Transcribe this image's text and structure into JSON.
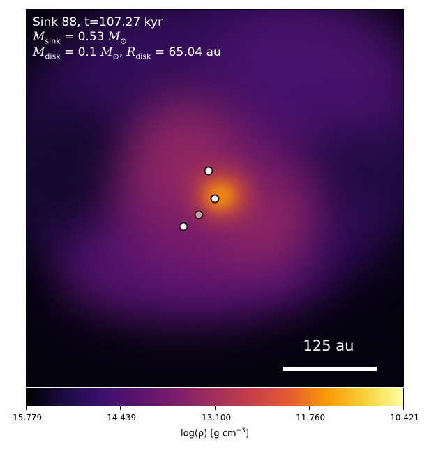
{
  "annotation": {
    "line1": "Sink 88, t=107.27 kyr",
    "msink_label": "M",
    "msink_sub": "sink",
    "msink_value": " = 0.53 ",
    "msink_unit": "M",
    "msink_unit_sub": "⊙",
    "mdisk_label": "M",
    "mdisk_sub": "disk",
    "mdisk_value": " = 0.1 ",
    "mdisk_unit": "M",
    "mdisk_unit_sub": "⊙",
    "rdisk_sep": ", ",
    "rdisk_label": "R",
    "rdisk_sub": "disk",
    "rdisk_value": " = 65.04 au"
  },
  "scalebar": {
    "label": "125 au"
  },
  "colorbar": {
    "colormap": "inferno",
    "ticks": [
      "-15.779",
      "-14.439",
      "-13.100",
      "-11.760",
      "-10.421"
    ],
    "label_main": "log(ρ) [g cm",
    "label_exp": "−3",
    "label_end": "]"
  },
  "sinks_count_visible": 4
}
